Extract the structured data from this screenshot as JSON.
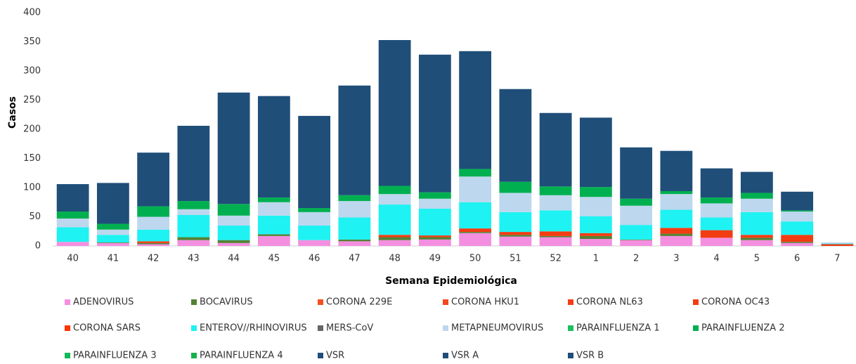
{
  "chart_data": {
    "type": "stacked_bar",
    "x_label": "Semana Epidemiológica",
    "y_label": "Casos",
    "categories": [
      "40",
      "41",
      "42",
      "43",
      "44",
      "45",
      "46",
      "47",
      "48",
      "49",
      "50",
      "51",
      "52",
      "1",
      "2",
      "3",
      "4",
      "5",
      "6",
      "7"
    ],
    "ylim": [
      0,
      400
    ],
    "yticks": [
      0,
      50,
      100,
      150,
      200,
      250,
      300,
      350,
      400
    ],
    "series": [
      {
        "name": "ADENOVIRUS",
        "color": "#f48fe0",
        "values": [
          7,
          5,
          3,
          10,
          5,
          17,
          10,
          8,
          10,
          11,
          22,
          16,
          15,
          12,
          10,
          17,
          14,
          10,
          5,
          0
        ]
      },
      {
        "name": "BOCAVIRUS",
        "color": "#548235",
        "values": [
          0,
          1,
          2,
          5,
          5,
          3,
          0,
          3,
          5,
          4,
          2,
          3,
          2,
          5,
          1,
          4,
          0,
          4,
          2,
          0
        ]
      },
      {
        "name": "CORONA 229E",
        "color": "#f4511e",
        "values": [
          0,
          0,
          0,
          0,
          0,
          0,
          0,
          0,
          0,
          0,
          0,
          0,
          0,
          0,
          0,
          0,
          0,
          0,
          0,
          0
        ]
      },
      {
        "name": "CORONA HKU1",
        "color": "#f4481e",
        "values": [
          0,
          0,
          0,
          0,
          0,
          0,
          0,
          0,
          0,
          0,
          0,
          0,
          0,
          0,
          0,
          0,
          0,
          0,
          0,
          0
        ]
      },
      {
        "name": "CORONA NL63",
        "color": "#f43d1a",
        "values": [
          0,
          0,
          0,
          0,
          0,
          0,
          0,
          0,
          0,
          0,
          0,
          0,
          0,
          0,
          0,
          0,
          0,
          0,
          0,
          0
        ]
      },
      {
        "name": "CORONA OC43",
        "color": "#f23c12",
        "values": [
          0,
          0,
          3,
          0,
          0,
          0,
          0,
          0,
          4,
          3,
          6,
          5,
          8,
          5,
          0,
          10,
          13,
          5,
          12,
          3
        ]
      },
      {
        "name": "CORONA SARS",
        "color": "#ff3300",
        "values": [
          0,
          0,
          0,
          0,
          0,
          0,
          0,
          0,
          0,
          0,
          0,
          0,
          0,
          0,
          0,
          0,
          0,
          0,
          0,
          0
        ]
      },
      {
        "name": "ENTEROV//RHINOVIRUS",
        "color": "#1ef2f2",
        "values": [
          25,
          13,
          20,
          38,
          25,
          32,
          25,
          38,
          52,
          46,
          45,
          34,
          36,
          29,
          25,
          31,
          22,
          39,
          23,
          1
        ]
      },
      {
        "name": "MERS-CoV",
        "color": "#666666",
        "values": [
          0,
          0,
          0,
          0,
          0,
          0,
          0,
          0,
          0,
          0,
          0,
          0,
          0,
          0,
          0,
          0,
          0,
          0,
          0,
          0
        ]
      },
      {
        "name": "METAPNEUMOVIRUS",
        "color": "#bdd7ee",
        "values": [
          15,
          9,
          22,
          10,
          17,
          23,
          23,
          28,
          18,
          17,
          44,
          33,
          26,
          33,
          33,
          27,
          24,
          23,
          17,
          2
        ]
      },
      {
        "name": "PARAINFLUENZA 1",
        "color": "#1cbf5c",
        "values": [
          0,
          0,
          0,
          0,
          0,
          0,
          0,
          0,
          0,
          0,
          0,
          0,
          0,
          0,
          0,
          0,
          0,
          0,
          0,
          0
        ]
      },
      {
        "name": "PARAINFLUENZA 2",
        "color": "#00b050",
        "values": [
          12,
          10,
          18,
          14,
          20,
          8,
          7,
          10,
          14,
          11,
          13,
          19,
          15,
          17,
          12,
          5,
          10,
          10,
          2,
          0
        ]
      },
      {
        "name": "PARAINFLUENZA 3",
        "color": "#12b85a",
        "values": [
          0,
          0,
          0,
          0,
          0,
          0,
          0,
          0,
          0,
          0,
          0,
          0,
          0,
          0,
          0,
          0,
          0,
          0,
          0,
          0
        ]
      },
      {
        "name": "PARAINFLUENZA 4",
        "color": "#16b04e",
        "values": [
          0,
          0,
          0,
          0,
          0,
          0,
          0,
          0,
          0,
          0,
          0,
          0,
          0,
          0,
          0,
          0,
          0,
          0,
          0,
          0
        ]
      },
      {
        "name": "VSR",
        "color": "#1f4e79",
        "values": [
          47,
          70,
          92,
          129,
          191,
          174,
          158,
          188,
          250,
          236,
          202,
          159,
          126,
          119,
          88,
          69,
          50,
          36,
          32,
          0
        ]
      },
      {
        "name": "VSR A",
        "color": "#1f4e79",
        "values": [
          0,
          0,
          0,
          0,
          0,
          0,
          0,
          0,
          0,
          0,
          0,
          0,
          0,
          0,
          0,
          0,
          0,
          0,
          0,
          0
        ]
      },
      {
        "name": "VSR B",
        "color": "#1f4e79",
        "values": [
          0,
          0,
          0,
          0,
          0,
          0,
          0,
          0,
          0,
          0,
          0,
          0,
          0,
          0,
          0,
          0,
          0,
          0,
          0,
          0
        ]
      }
    ]
  }
}
